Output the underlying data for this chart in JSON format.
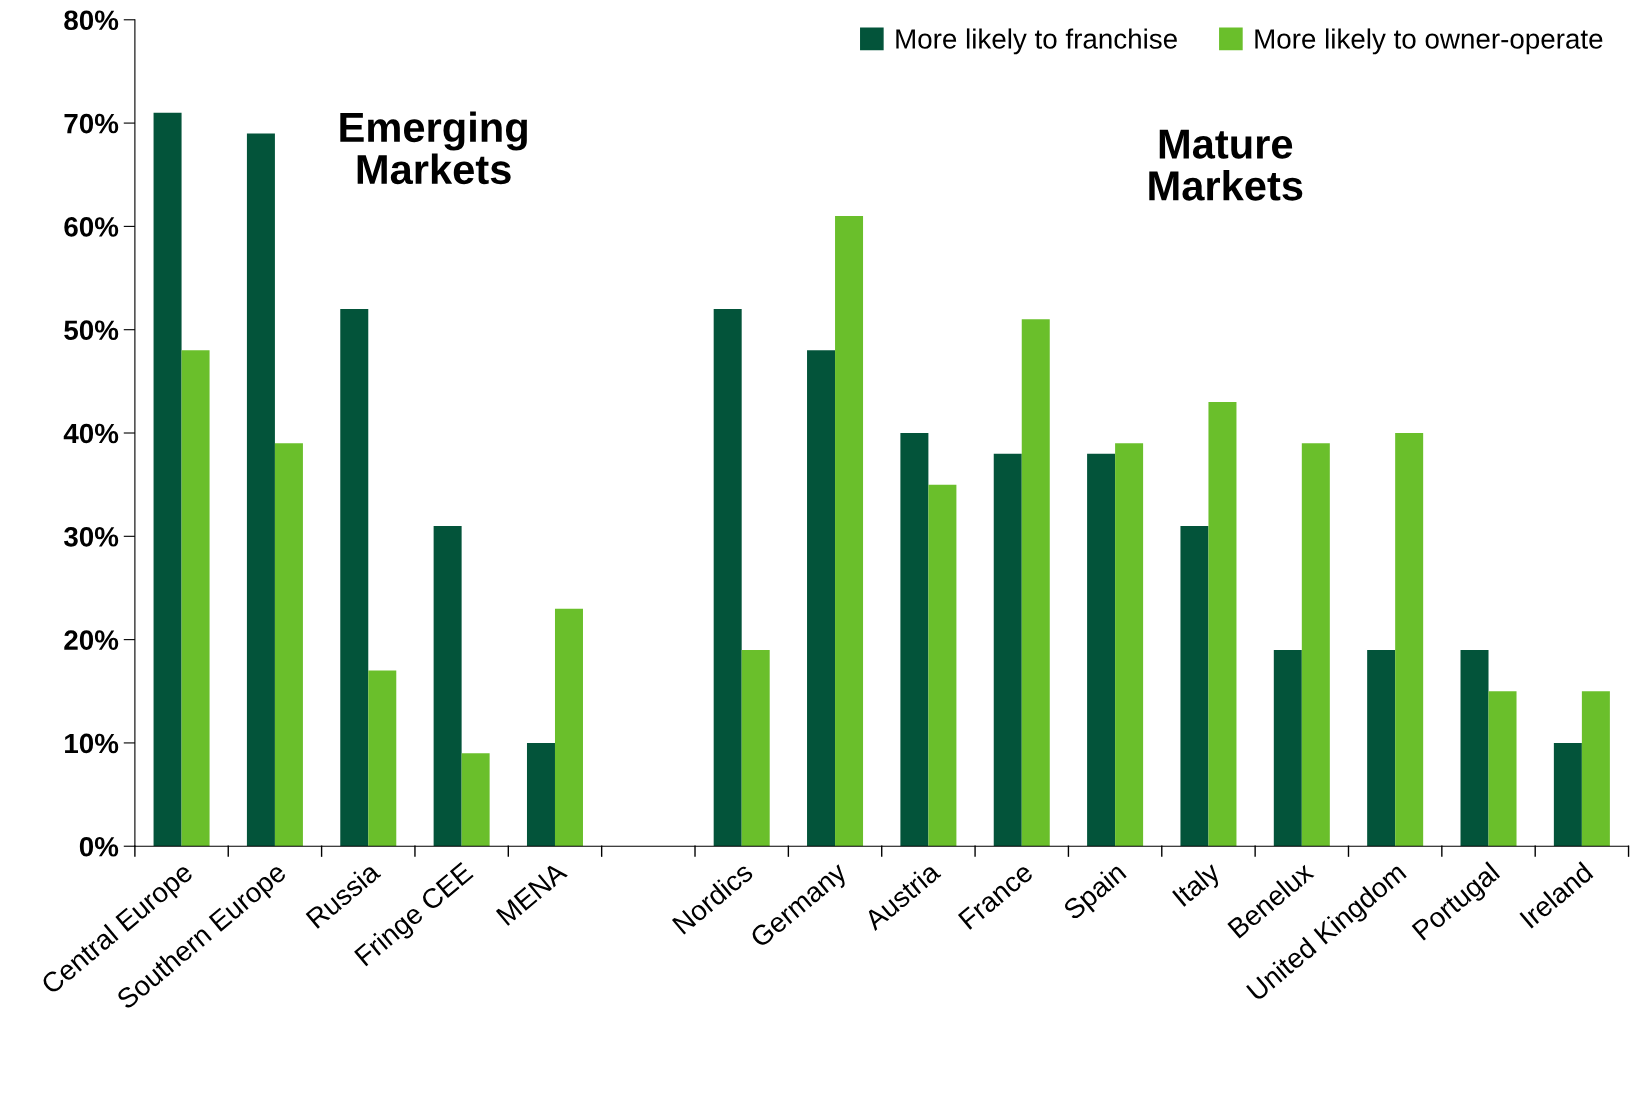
{
  "chart_data": {
    "type": "bar",
    "categories": [
      "Central Europe",
      "Southern Europe",
      "Russia",
      "Fringe CEE",
      "MENA",
      null,
      "Nordics",
      "Germany",
      "Austria",
      "France",
      "Spain",
      "Italy",
      "Benelux",
      "United Kingdom",
      "Portugal",
      "Ireland"
    ],
    "series": [
      {
        "name": "More likely to franchise",
        "color": "#03543a",
        "values": [
          71,
          69,
          52,
          31,
          10,
          null,
          52,
          48,
          40,
          38,
          38,
          31,
          19,
          19,
          19,
          10
        ]
      },
      {
        "name": "More likely to owner-operate",
        "color": "#6abf2b",
        "values": [
          48,
          39,
          17,
          9,
          23,
          null,
          19,
          61,
          35,
          51,
          39,
          43,
          39,
          40,
          15,
          15
        ]
      }
    ],
    "ylim": [
      0,
      80
    ],
    "yticks": [
      {
        "value": 0,
        "label": "0%"
      },
      {
        "value": 10,
        "label": "10%"
      },
      {
        "value": 20,
        "label": "20%"
      },
      {
        "value": 30,
        "label": "30%"
      },
      {
        "value": 40,
        "label": "40%"
      },
      {
        "value": 50,
        "label": "50%"
      },
      {
        "value": 60,
        "label": "60%"
      },
      {
        "value": 70,
        "label": "70%"
      },
      {
        "value": 80,
        "label": "80%"
      }
    ],
    "annotations": [
      "Emerging\nMarkets",
      "Mature\nMarkets"
    ],
    "legend": "top right",
    "grid": false
  }
}
